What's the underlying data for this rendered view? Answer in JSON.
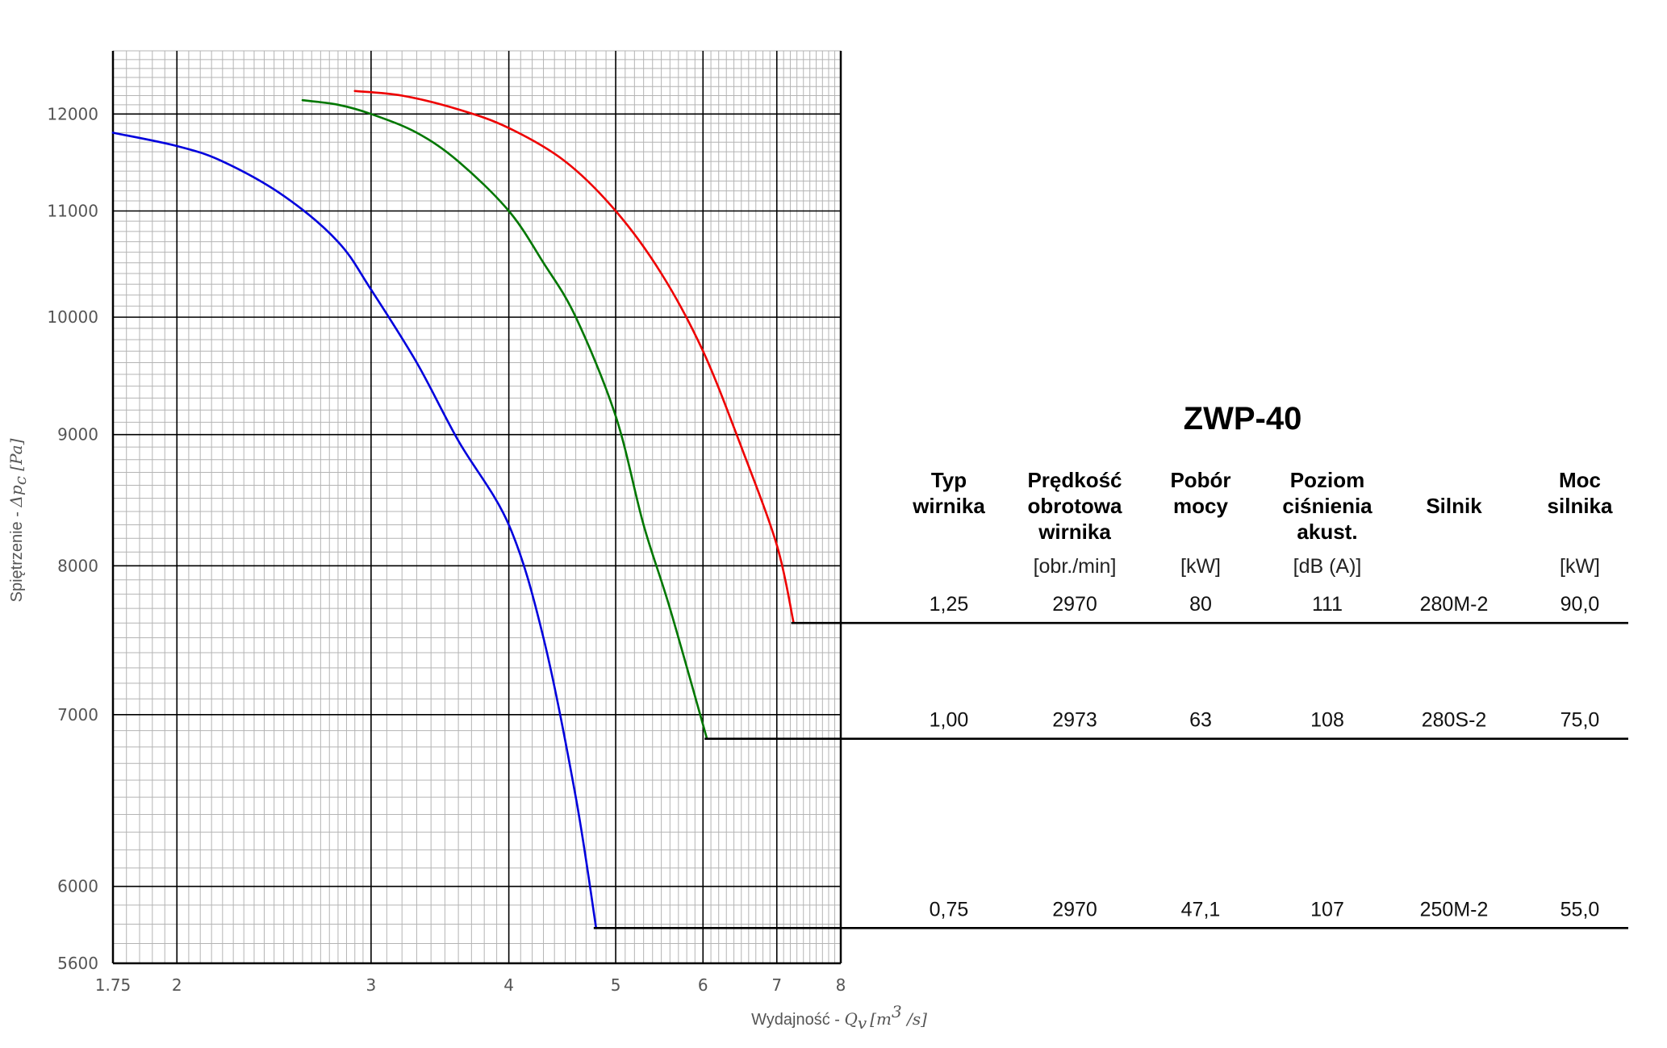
{
  "chart_data": {
    "type": "line",
    "title": "ZWP-40",
    "xlabel": "Wydajność - ",
    "xlabel_math": "Q",
    "xlabel_math_sub": "v",
    "xlabel_unit": "[m",
    "xlabel_unit_sup": "3",
    "xlabel_unit_end": " /s]",
    "ylabel": "Spiętrzenie - ",
    "ylabel_math": "Δp",
    "ylabel_math_sub": "c",
    "ylabel_unit": " [Pa]",
    "x_scale": "log",
    "y_scale": "log",
    "xlim": [
      1.75,
      8
    ],
    "ylim": [
      5600,
      12700
    ],
    "grid": true,
    "x_ticks": [
      1.75,
      2,
      3,
      4,
      5,
      6,
      7,
      8
    ],
    "x_tick_labels": [
      "1.75",
      "2",
      "3",
      "4",
      "5",
      "6",
      "7",
      "8"
    ],
    "y_ticks": [
      5600,
      6000,
      7000,
      8000,
      9000,
      10000,
      11000,
      12000
    ],
    "y_tick_labels": [
      "5600",
      "6000",
      "7000",
      "8000",
      "9000",
      "10000",
      "11000",
      "12000"
    ],
    "series": [
      {
        "color": "#0000dd",
        "x": [
          1.75,
          2.0,
          2.2,
          2.5,
          2.8,
          3.0,
          3.3,
          3.6,
          4.0,
          4.3,
          4.6,
          4.8
        ],
        "y": [
          11800,
          11660,
          11500,
          11150,
          10700,
          10250,
          9600,
          8950,
          8300,
          7500,
          6500,
          5780
        ],
        "end_y": 5780
      },
      {
        "color": "#007700",
        "x": [
          2.6,
          2.8,
          3.0,
          3.3,
          3.6,
          4.0,
          4.3,
          4.6,
          5.0,
          5.3,
          5.6,
          6.05
        ],
        "y": [
          12150,
          12100,
          12000,
          11800,
          11500,
          11000,
          10500,
          10000,
          9150,
          8300,
          7700,
          6850
        ],
        "end_y": 6850
      },
      {
        "color": "#ee0000",
        "x": [
          2.9,
          3.2,
          3.6,
          4.0,
          4.5,
          5.0,
          5.5,
          6.0,
          6.5,
          7.0,
          7.25
        ],
        "y": [
          12250,
          12200,
          12050,
          11850,
          11500,
          11000,
          10400,
          9700,
          8900,
          8150,
          7600
        ],
        "end_y": 7600
      }
    ]
  },
  "table": {
    "title": "ZWP-40",
    "columns": [
      {
        "head": [
          "Typ",
          "wirnika"
        ],
        "unit": ""
      },
      {
        "head": [
          "Prędkość",
          "obrotowa",
          "wirnika"
        ],
        "unit": "[obr./min]"
      },
      {
        "head": [
          "Pobór",
          "mocy"
        ],
        "unit": "[kW]"
      },
      {
        "head": [
          "Poziom",
          "ciśnienia",
          "akust."
        ],
        "unit": "[dB (A)]"
      },
      {
        "head": [
          "Silnik"
        ],
        "unit": ""
      },
      {
        "head": [
          "Moc",
          "silnika"
        ],
        "unit": "[kW]"
      }
    ],
    "rows": [
      {
        "cells": [
          "1,25",
          "2970",
          "80",
          "111",
          "280M-2",
          "90,0"
        ],
        "series_index": 2
      },
      {
        "cells": [
          "1,00",
          "2973",
          "63",
          "108",
          "280S-2",
          "75,0"
        ],
        "series_index": 1
      },
      {
        "cells": [
          "0,75",
          "2970",
          "47,1",
          "107",
          "250M-2",
          "55,0"
        ],
        "series_index": 0
      }
    ]
  }
}
